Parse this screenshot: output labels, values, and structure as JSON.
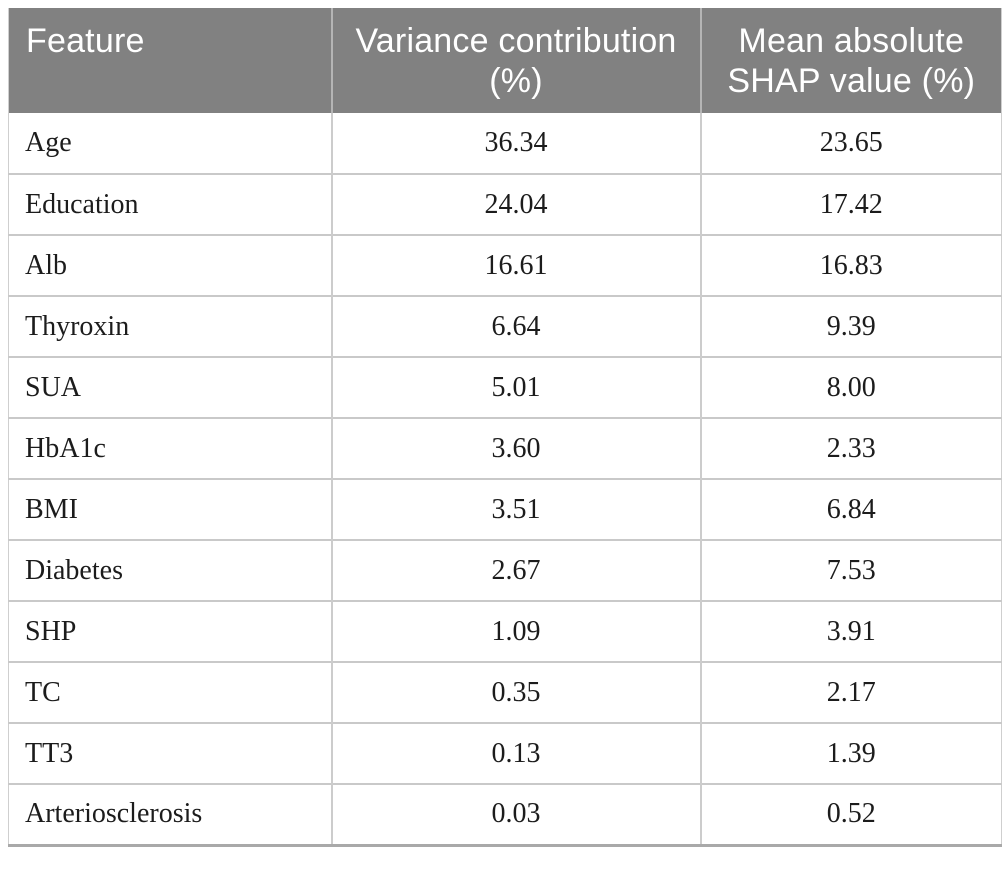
{
  "table": {
    "columns": [
      {
        "label": "Feature"
      },
      {
        "label": "Variance contribution (%)"
      },
      {
        "label": "Mean absolute SHAP value (%)"
      }
    ],
    "rows": [
      {
        "feature": "Age",
        "variance": "36.34",
        "shap": "23.65"
      },
      {
        "feature": "Education",
        "variance": "24.04",
        "shap": "17.42"
      },
      {
        "feature": "Alb",
        "variance": "16.61",
        "shap": "16.83"
      },
      {
        "feature": "Thyroxin",
        "variance": "6.64",
        "shap": "9.39"
      },
      {
        "feature": "SUA",
        "variance": "5.01",
        "shap": "8.00"
      },
      {
        "feature": "HbA1c",
        "variance": "3.60",
        "shap": "2.33"
      },
      {
        "feature": "BMI",
        "variance": "3.51",
        "shap": "6.84"
      },
      {
        "feature": "Diabetes",
        "variance": "2.67",
        "shap": "7.53"
      },
      {
        "feature": "SHP",
        "variance": "1.09",
        "shap": "3.91"
      },
      {
        "feature": "TC",
        "variance": "0.35",
        "shap": "2.17"
      },
      {
        "feature": "TT3",
        "variance": "0.13",
        "shap": "1.39"
      },
      {
        "feature": "Arteriosclerosis",
        "variance": "0.03",
        "shap": "0.52"
      }
    ],
    "colors": {
      "header_background": "#818181",
      "header_text": "#ffffff",
      "header_divider": "#b5b5b5",
      "row_divider": "#c9c9c9",
      "bottom_border": "#a9a9a9",
      "body_text": "#1c1c1c"
    }
  }
}
